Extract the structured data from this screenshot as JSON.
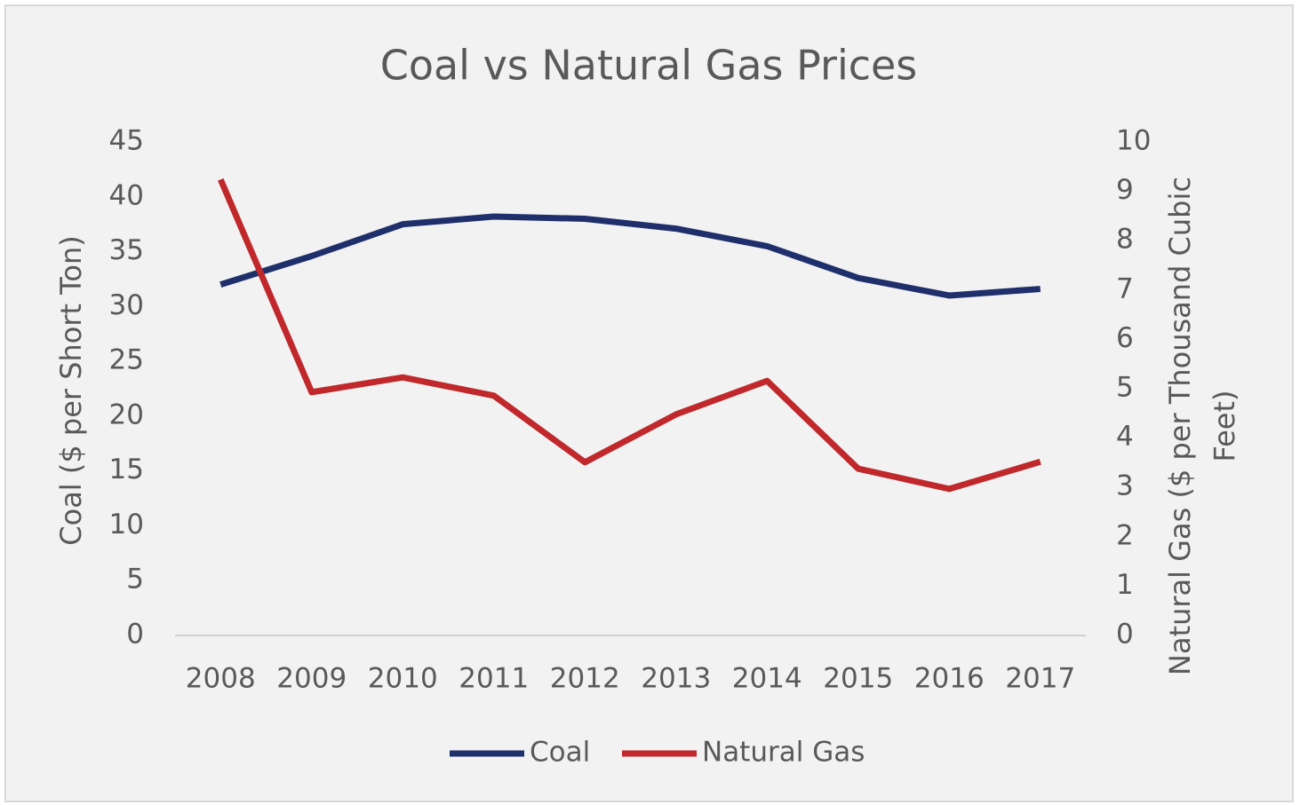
{
  "chart_data": {
    "type": "line",
    "title": "Coal vs Natural Gas Prices",
    "ylabel": "Coal ($ per Short Ton)",
    "y2label": [
      "Natural Gas  ($ per Thousand Cubic",
      "Feet)"
    ],
    "categories": [
      "2008",
      "2009",
      "2010",
      "2011",
      "2012",
      "2013",
      "2014",
      "2015",
      "2016",
      "2017"
    ],
    "series": [
      {
        "name": "Coal",
        "color": "#1f2f6b",
        "values": [
          32.0,
          34.6,
          37.5,
          38.2,
          38.0,
          37.1,
          35.5,
          32.6,
          31.0,
          31.6
        ]
      },
      {
        "name": "Natural Gas",
        "color": "#c0282b",
        "axis": "y2",
        "values": [
          9.24,
          4.93,
          5.23,
          4.86,
          3.51,
          4.48,
          5.16,
          3.38,
          2.97,
          3.52
        ]
      }
    ],
    "ylim": [
      0,
      45
    ],
    "yticks": [
      0,
      5,
      10,
      15,
      20,
      25,
      30,
      35,
      40,
      45
    ],
    "y2lim": [
      0,
      10
    ],
    "y2ticks": [
      0,
      1,
      2,
      3,
      4,
      5,
      6,
      7,
      8,
      9,
      10
    ],
    "legend": "bottom"
  }
}
